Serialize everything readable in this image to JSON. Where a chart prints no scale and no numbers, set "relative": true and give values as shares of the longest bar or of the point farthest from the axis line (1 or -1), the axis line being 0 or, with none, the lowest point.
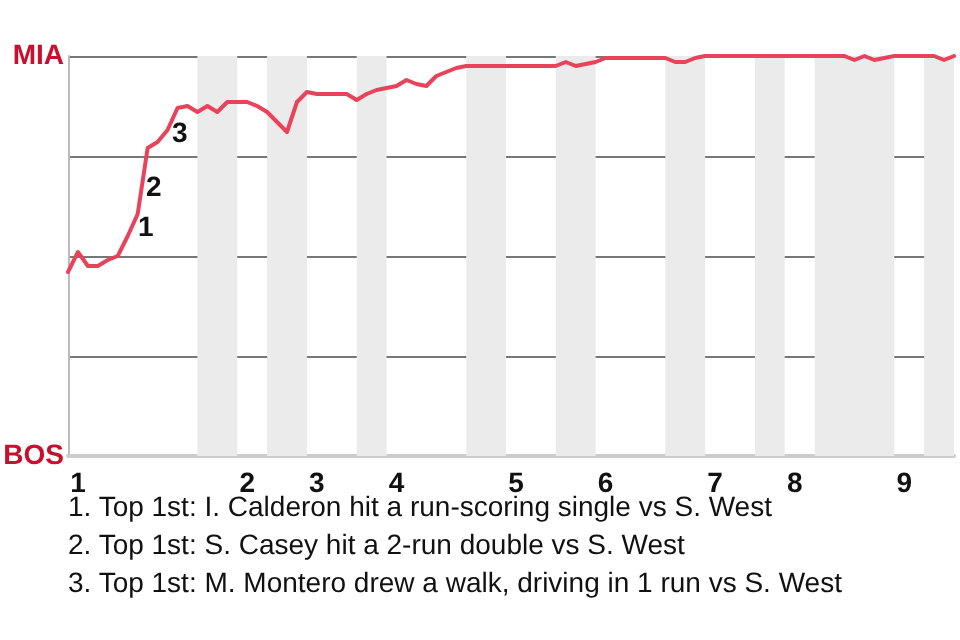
{
  "chart_data": {
    "type": "line",
    "relative": true,
    "categories": [
      null,
      "1",
      null,
      null,
      null,
      null,
      null,
      null,
      null,
      null,
      null,
      null,
      null,
      null,
      null,
      null,
      null,
      null,
      "2",
      null,
      null,
      null,
      null,
      null,
      null,
      "3",
      null,
      null,
      null,
      null,
      null,
      null,
      null,
      "4",
      null,
      null,
      null,
      null,
      null,
      null,
      null,
      null,
      null,
      null,
      null,
      "5",
      null,
      null,
      null,
      null,
      null,
      null,
      null,
      null,
      "6",
      null,
      null,
      null,
      null,
      null,
      null,
      null,
      null,
      null,
      null,
      "7",
      null,
      null,
      null,
      null,
      null,
      null,
      null,
      "8",
      null,
      null,
      null,
      null,
      null,
      null,
      null,
      null,
      null,
      null,
      "9",
      null,
      null,
      null,
      null,
      null
    ],
    "series": [
      {
        "color": "#e8435a",
        "values": [
          0.46,
          0.51,
          0.475,
          0.475,
          0.49,
          0.5,
          0.55,
          0.605,
          0.77,
          0.785,
          0.815,
          0.87,
          0.875,
          0.86,
          0.875,
          0.86,
          0.885,
          0.885,
          0.885,
          0.875,
          0.86,
          0.835,
          0.81,
          0.885,
          0.91,
          0.905,
          0.905,
          0.905,
          0.905,
          0.89,
          0.905,
          0.915,
          0.92,
          0.925,
          0.94,
          0.93,
          0.925,
          0.95,
          0.96,
          0.97,
          0.975,
          0.975,
          0.975,
          0.975,
          0.975,
          0.975,
          0.975,
          0.975,
          0.975,
          0.975,
          0.985,
          0.975,
          0.98,
          0.985,
          0.995,
          0.995,
          0.995,
          0.995,
          0.995,
          0.995,
          0.995,
          0.985,
          0.985,
          0.995,
          1,
          1,
          1,
          1,
          1,
          1,
          1,
          1,
          1,
          1,
          1,
          1,
          1,
          1,
          1,
          0.99,
          1,
          0.99,
          0.995,
          1,
          1,
          1,
          1,
          1,
          0.99,
          1
        ]
      }
    ],
    "grid": "y",
    "marker": "none",
    "annotations": [
      "MIA",
      "BOS",
      "1",
      "2",
      "3",
      "1. Top 1st: I. Calderon hit a run-scoring single vs S. West",
      "2. Top 1st: S. Casey hit a 2-run double vs S. West",
      "3. Top 1st: M. Montero drew a walk, driving in 1 run vs S. West"
    ]
  }
}
